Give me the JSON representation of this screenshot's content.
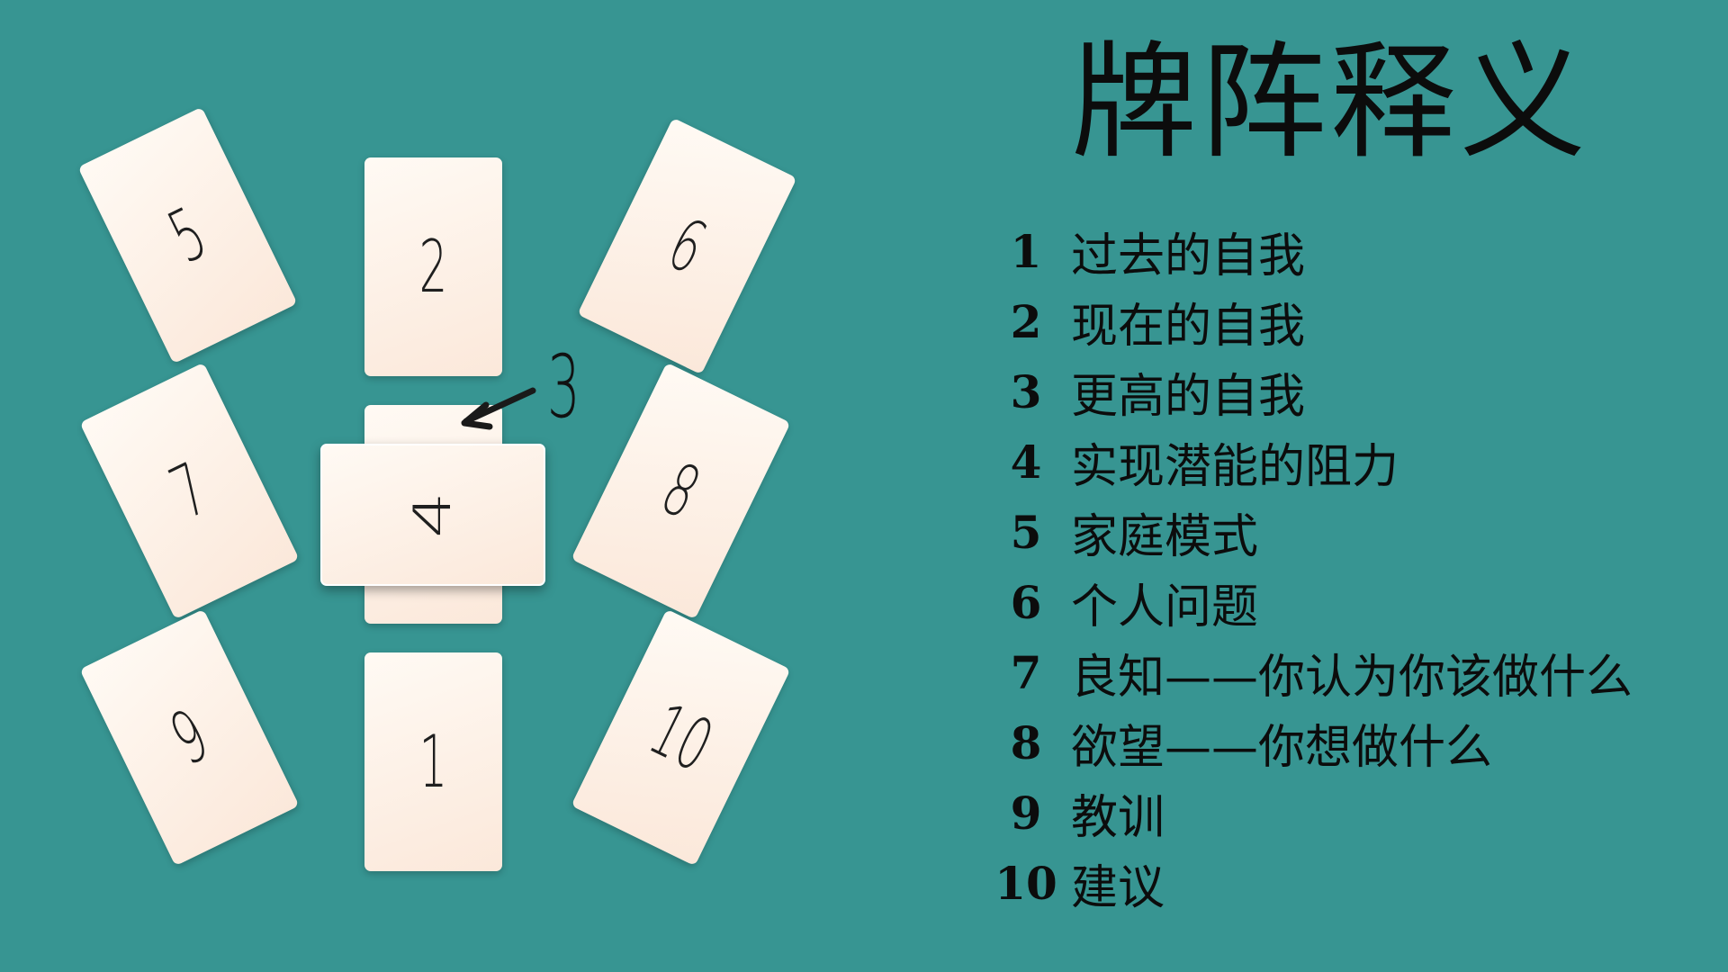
{
  "title": "牌阵释义",
  "cards": {
    "c1": "1",
    "c2": "2",
    "c3": "3",
    "c4": "4",
    "c5": "5",
    "c6": "6",
    "c7": "7",
    "c8": "8",
    "c9": "9",
    "c10": "10"
  },
  "legend": [
    {
      "num": "1",
      "text": "过去的自我"
    },
    {
      "num": "2",
      "text": "现在的自我"
    },
    {
      "num": "3",
      "text": "更高的自我"
    },
    {
      "num": "4",
      "text": "实现潜能的阻力"
    },
    {
      "num": "5",
      "text": "家庭模式"
    },
    {
      "num": "6",
      "text": "个人问题"
    },
    {
      "num": "7",
      "text": "良知——你认为你该做什么"
    },
    {
      "num": "8",
      "text": "欲望——你想做什么"
    },
    {
      "num": "9",
      "text": "教训"
    },
    {
      "num": "10",
      "text": "建议"
    }
  ],
  "colors": {
    "background": "#379592",
    "card": "#fdf1e8",
    "text": "#0c0c0c"
  }
}
